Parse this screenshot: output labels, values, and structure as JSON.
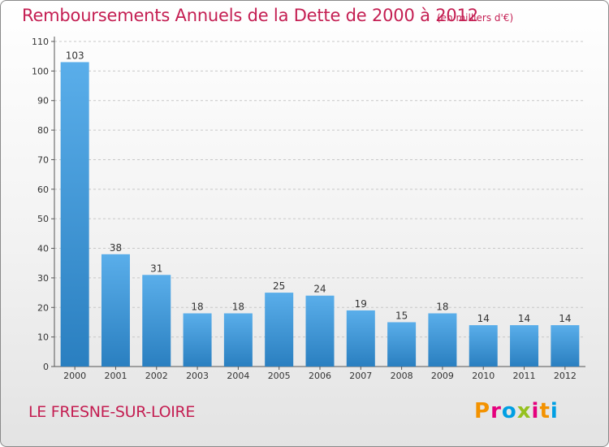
{
  "header": {
    "title": "Remboursements Annuels de la Dette de 2000 à 2012",
    "subtitle": "(en milliers d'€)"
  },
  "footer": {
    "commune": "LE FRESNE-SUR-LOIRE",
    "logo_text": "Proxiti",
    "logo_colors": [
      "#f39200",
      "#e5007d",
      "#009fe3",
      "#95c11f",
      "#e5007d",
      "#f39200",
      "#009fe3"
    ]
  },
  "chart_data": {
    "type": "bar",
    "categories": [
      "2000",
      "2001",
      "2002",
      "2003",
      "2004",
      "2005",
      "2006",
      "2007",
      "2008",
      "2009",
      "2010",
      "2011",
      "2012"
    ],
    "values": [
      103,
      38,
      31,
      18,
      18,
      25,
      24,
      19,
      15,
      18,
      14,
      14,
      14
    ],
    "ylim": [
      0,
      110
    ],
    "yticks": [
      0,
      10,
      20,
      30,
      40,
      50,
      60,
      70,
      80,
      90,
      100,
      110
    ],
    "grid": true,
    "bar_color_top": "#5aaeea",
    "bar_color_bottom": "#2a7fc0"
  }
}
